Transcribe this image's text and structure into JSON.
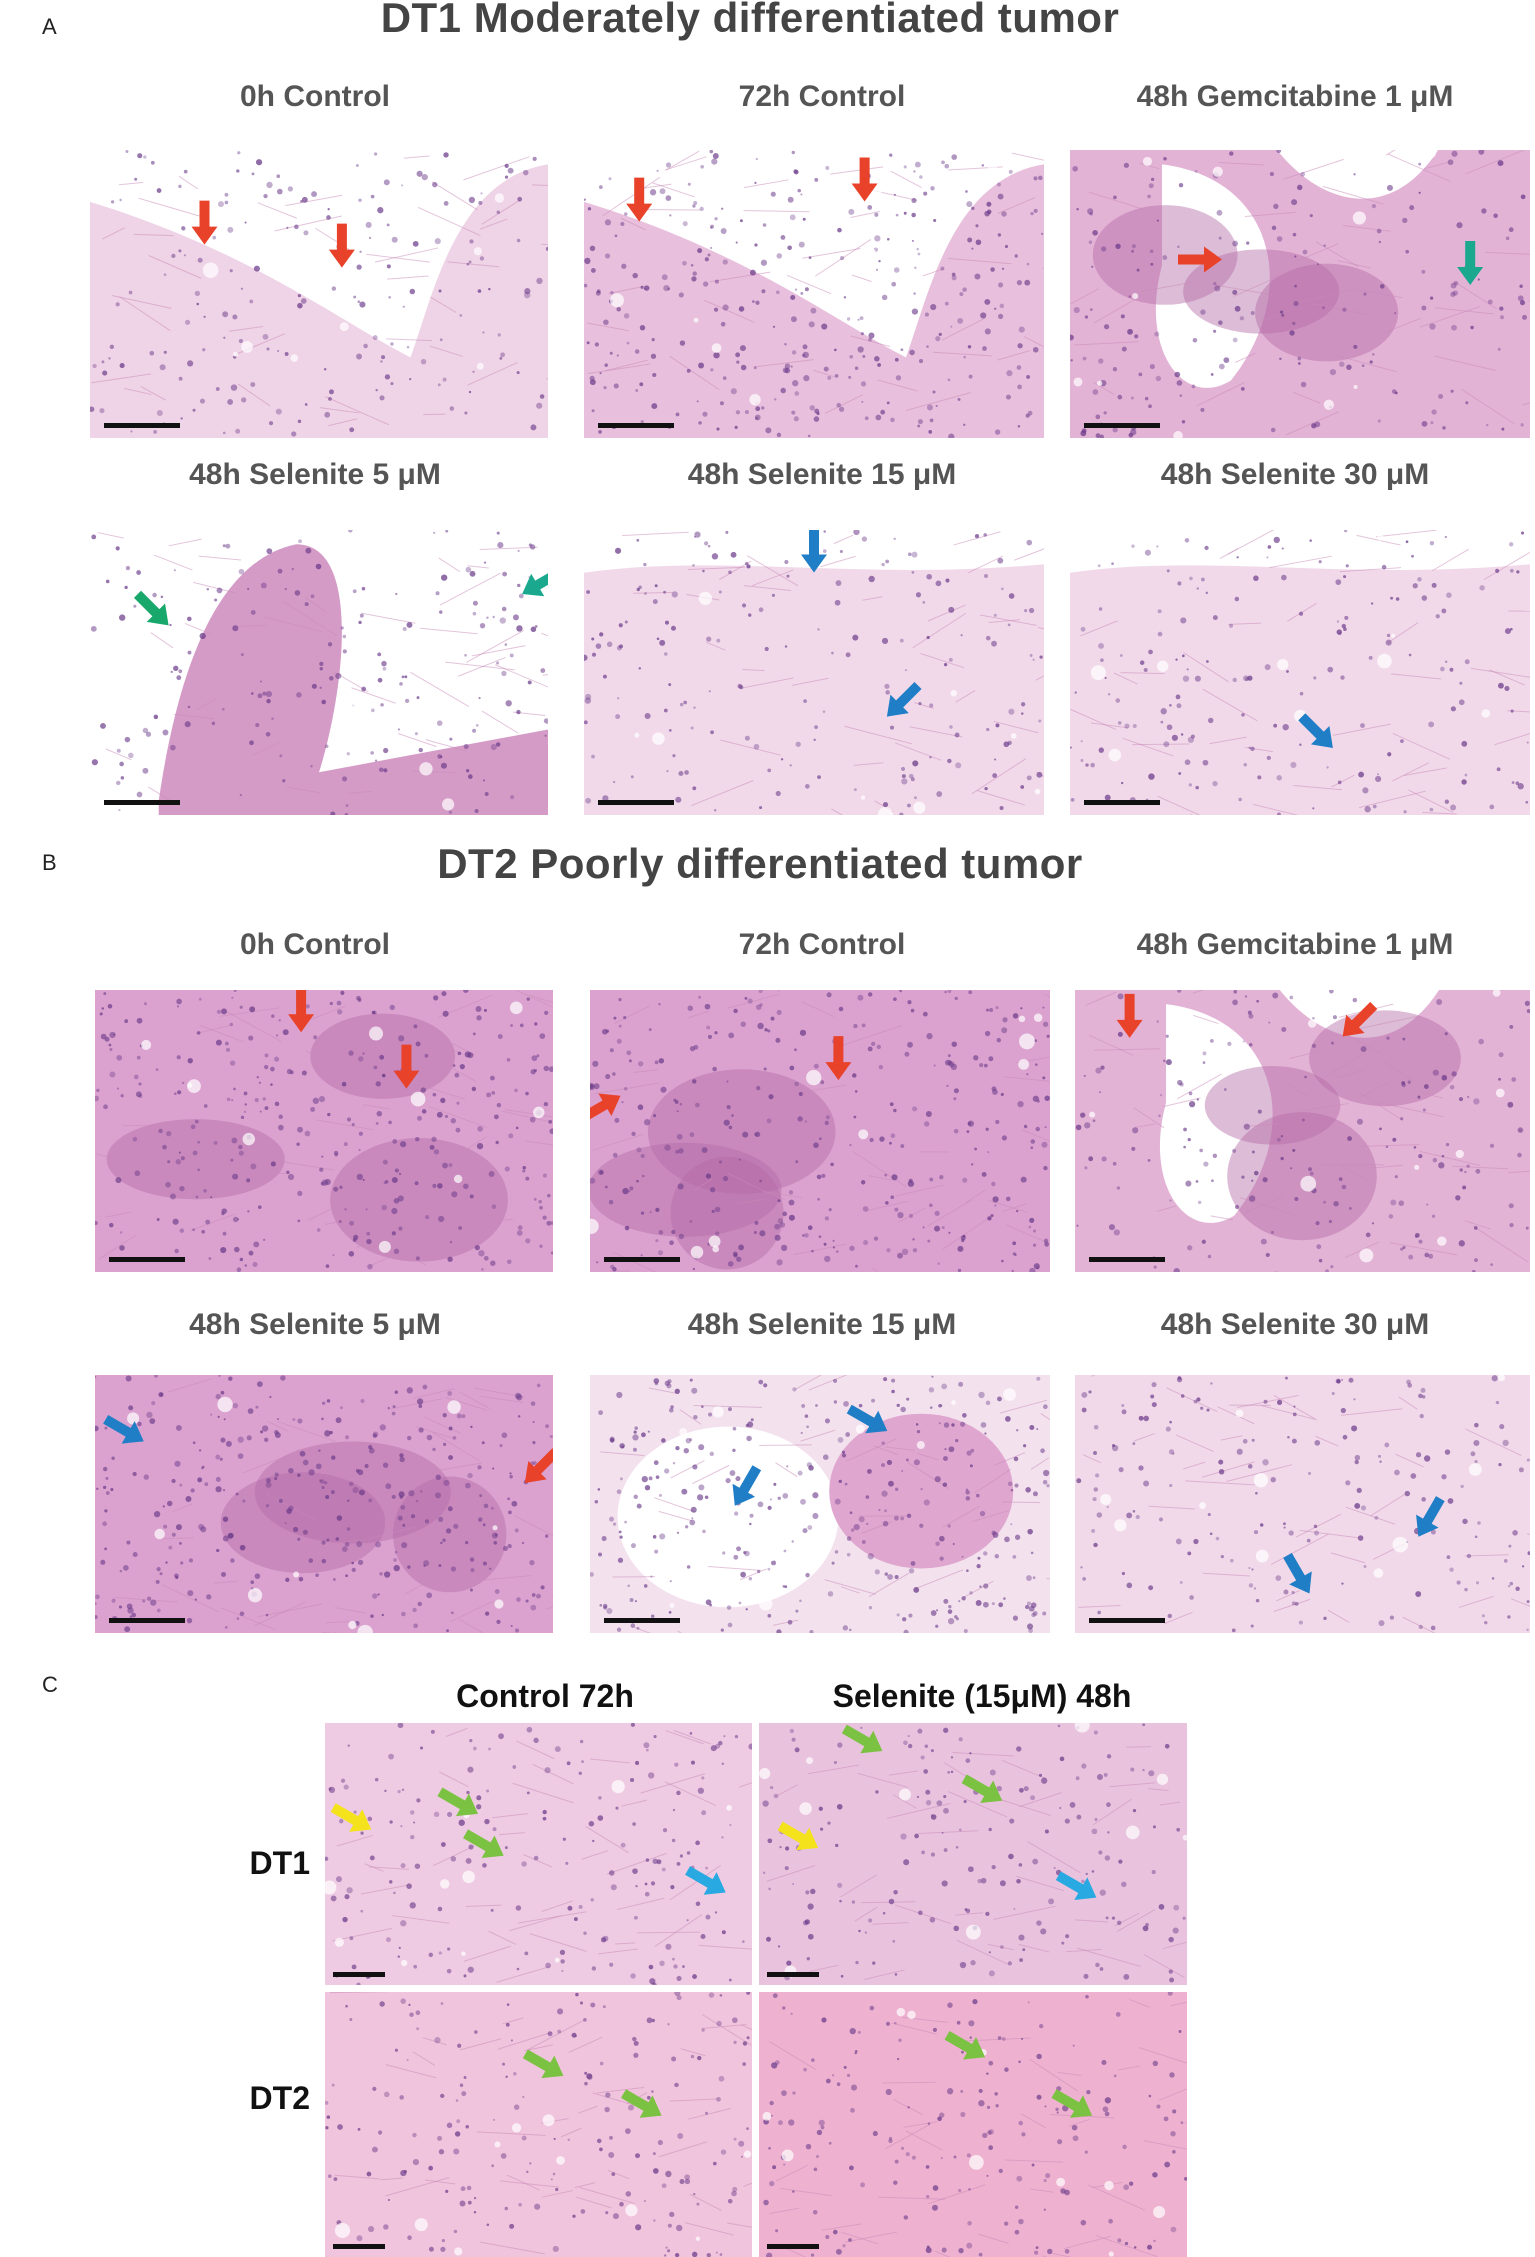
{
  "panel_a": {
    "letter": "A",
    "title": "DT1 Moderately differentiated tumor",
    "row1_labels": [
      "0h Control",
      "72h Control",
      "48h Gemcitabine 1 μM"
    ],
    "row2_labels": [
      "48h Selenite 5 μM",
      "48h Selenite 15 μM",
      "48h Selenite 30 μM"
    ]
  },
  "panel_b": {
    "letter": "B",
    "title": "DT2 Poorly differentiated tumor",
    "row1_labels": [
      "0h Control",
      "72h Control",
      "48h Gemcitabine 1 μM"
    ],
    "row2_labels": [
      "48h Selenite 5 μM",
      "48h Selenite 15 μM",
      "48h Selenite 30 μM"
    ]
  },
  "panel_c": {
    "letter": "C",
    "col_labels": [
      "Control 72h",
      "Selenite (15μM) 48h"
    ],
    "row_labels": [
      "DT1",
      "DT2"
    ]
  },
  "colors": {
    "arrow_red": "#e8432a",
    "arrow_green": "#19a86b",
    "arrow_teal": "#1aa88f",
    "arrow_blue": "#1f7ec6",
    "arrow_yellow": "#f3e21c",
    "arrow_lightgreen": "#7cc242",
    "arrow_cyan": "#29a9e1",
    "tissue_stroma": "#e6b8d6",
    "tissue_epithelium": "#b46aa6",
    "tissue_nuclei": "#6b3b8a",
    "background": "#ffffff"
  }
}
